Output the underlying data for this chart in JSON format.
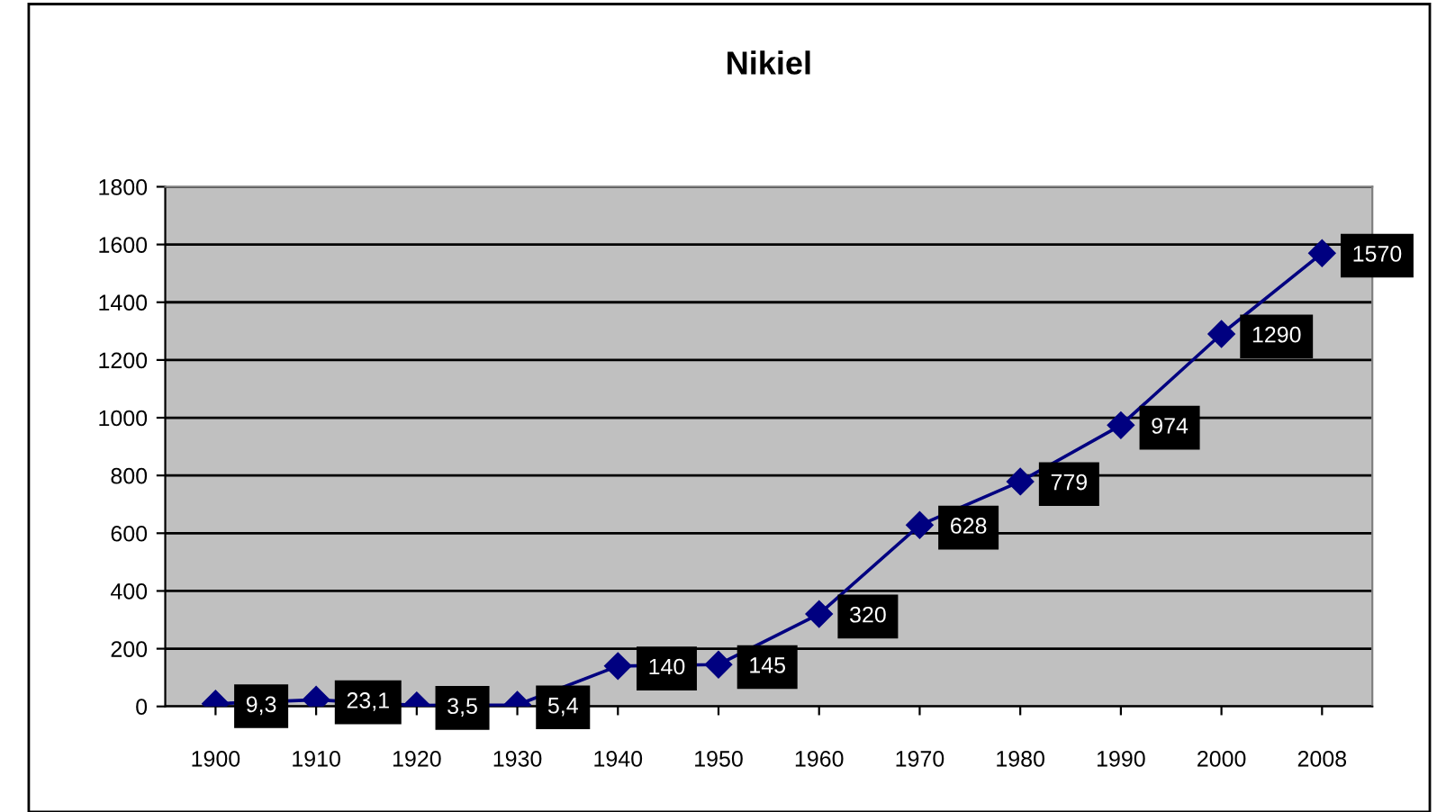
{
  "chart_data": {
    "type": "line",
    "title": "Nikiel",
    "categories": [
      "1900",
      "1910",
      "1920",
      "1930",
      "1940",
      "1950",
      "1960",
      "1970",
      "1980",
      "1990",
      "2000",
      "2008"
    ],
    "series": [
      {
        "color": "#000080",
        "values": [
          9.3,
          23.1,
          3.5,
          5.4,
          140,
          145,
          320,
          628,
          779,
          974,
          1290,
          1570
        ],
        "value_labels": [
          "9,3",
          "23,1",
          "3,5",
          "5,4",
          "140",
          "145",
          "320",
          "628",
          "779",
          "974",
          "1290",
          "1570"
        ]
      }
    ],
    "ylim": [
      0,
      1800
    ],
    "yticks": [
      0,
      200,
      400,
      600,
      800,
      1000,
      1200,
      1400,
      1600,
      1800
    ],
    "grid": "y",
    "marker": "diamond",
    "line_style": "solid",
    "legend": false
  }
}
